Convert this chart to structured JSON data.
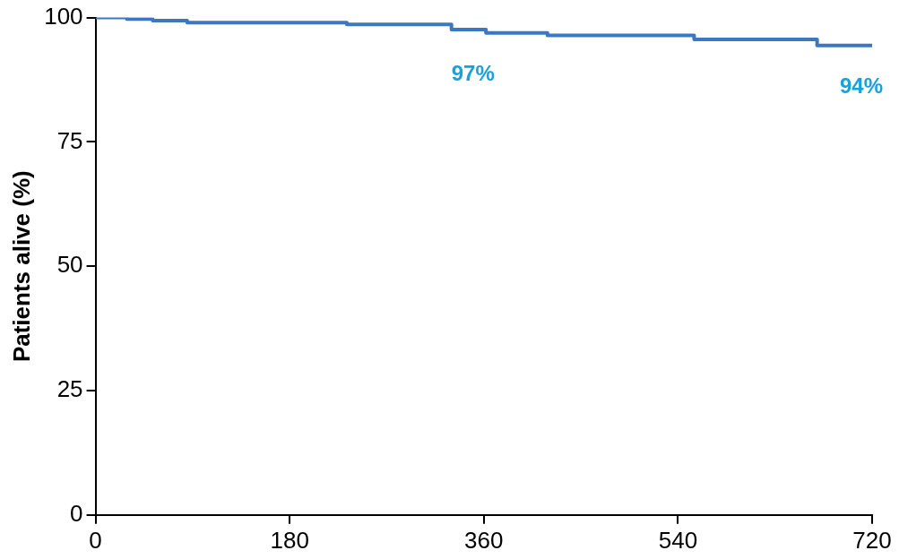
{
  "chart_data": {
    "type": "step",
    "ylabel": "Patients alive (%)",
    "x": [
      0,
      29,
      53,
      85,
      233,
      330,
      362,
      419,
      555,
      669,
      720
    ],
    "series": [
      {
        "color": "#3b78c0",
        "values": [
          100,
          99.7,
          99.4,
          99,
          98.6,
          97.6,
          96.9,
          96.4,
          95.6,
          94.4,
          94.4
        ]
      }
    ],
    "xlim": [
      0,
      720
    ],
    "xticks": [
      0,
      180,
      360,
      540,
      720
    ],
    "ylim": [
      0,
      100
    ],
    "yticks": [
      0,
      25,
      50,
      75,
      100
    ],
    "grid": false,
    "legend": false,
    "marker": "none",
    "line_style": "solid",
    "annotations": [
      {
        "text": "97%",
        "x": 360,
        "y": 96.9
      },
      {
        "text": "94%",
        "x": 720,
        "y": 94.4
      }
    ]
  }
}
